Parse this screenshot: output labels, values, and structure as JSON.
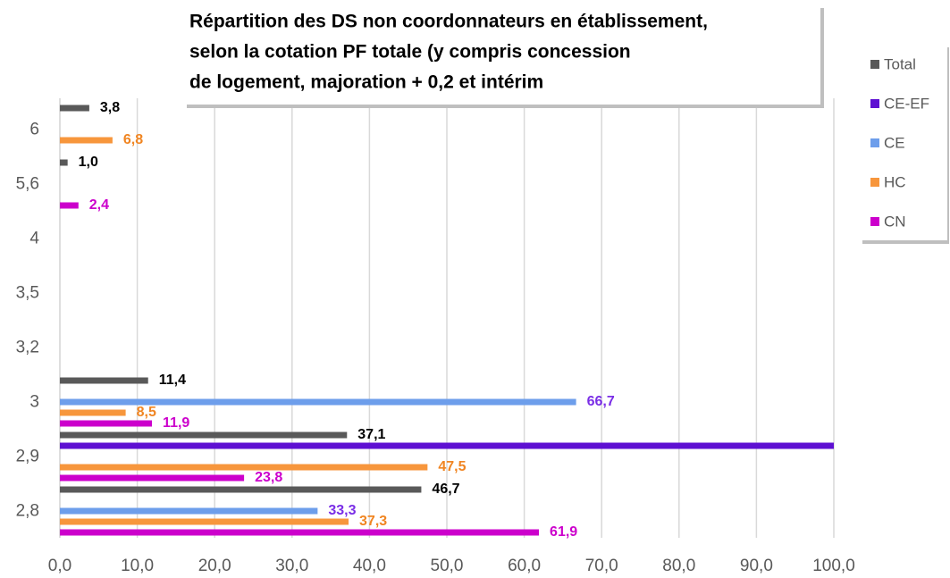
{
  "chart_data": {
    "type": "bar",
    "orientation": "horizontal",
    "title": [
      "Répartition des DS non coordonnateurs en établissement,",
      "selon la cotation PF totale (y compris concession",
      "de logement, majoration + 0,2 et intérim"
    ],
    "categories": [
      "2,8",
      "2,9",
      "3",
      "3,2",
      "3,5",
      "4",
      "5,6",
      "6"
    ],
    "series": [
      {
        "name": "Total",
        "color": "#595959",
        "label_color": "#000000",
        "values": [
          46.7,
          37.1,
          11.4,
          null,
          null,
          null,
          1.0,
          3.8
        ],
        "value_labels": [
          "46,7",
          "37,1",
          "11,4",
          null,
          null,
          null,
          "1,0",
          "3,8"
        ]
      },
      {
        "name": "CE-EF",
        "color": "#5e10d2",
        "label_color": "#5e10d2",
        "values": [
          null,
          100,
          null,
          null,
          null,
          null,
          null,
          null
        ],
        "value_labels": [
          null,
          null,
          null,
          null,
          null,
          null,
          null,
          null
        ]
      },
      {
        "name": "CE",
        "color": "#6d9eeb",
        "label_color": "#7a2ee6",
        "values": [
          33.3,
          null,
          66.7,
          null,
          null,
          null,
          null,
          null
        ],
        "value_labels": [
          "33,3",
          null,
          "66,7",
          null,
          null,
          null,
          null,
          null
        ]
      },
      {
        "name": "HC",
        "color": "#f7963c",
        "label_color": "#f08522",
        "values": [
          37.3,
          47.5,
          8.5,
          null,
          null,
          null,
          null,
          6.8
        ],
        "value_labels": [
          "37,3",
          "47,5",
          "8,5",
          null,
          null,
          null,
          null,
          "6,8"
        ]
      },
      {
        "name": "CN",
        "color": "#cc00cc",
        "label_color": "#cc00cc",
        "values": [
          61.9,
          23.8,
          11.9,
          null,
          null,
          null,
          2.4,
          null
        ],
        "value_labels": [
          "61,9",
          "23,8",
          "11,9",
          null,
          null,
          null,
          "2,4",
          null
        ]
      }
    ],
    "xlim": [
      0,
      100
    ],
    "xticks": [
      {
        "value": 0,
        "label": "0,0"
      },
      {
        "value": 10,
        "label": "10,0"
      },
      {
        "value": 20,
        "label": "20,0"
      },
      {
        "value": 30,
        "label": "30,0"
      },
      {
        "value": 40,
        "label": "40,0"
      },
      {
        "value": 50,
        "label": "50,0"
      },
      {
        "value": 60,
        "label": "60,0"
      },
      {
        "value": 70,
        "label": "70,0"
      },
      {
        "value": 80,
        "label": "80,0"
      },
      {
        "value": 90,
        "label": "90,0"
      },
      {
        "value": 100,
        "label": "100,0"
      }
    ],
    "grid": true,
    "legend": "right"
  }
}
